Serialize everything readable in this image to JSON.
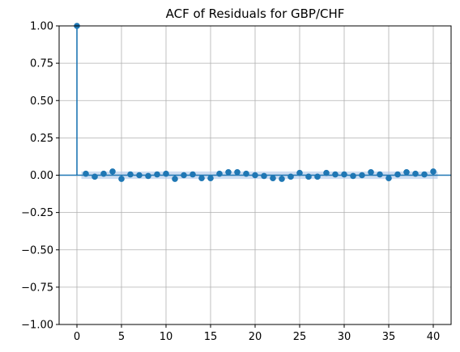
{
  "chart_data": {
    "type": "scatter",
    "title": "ACF of Residuals for GBP/CHF",
    "xlabel": "",
    "ylabel": "",
    "xlim": [
      -2,
      42
    ],
    "ylim": [
      -1.0,
      1.0
    ],
    "x_ticks": [
      0,
      5,
      10,
      15,
      20,
      25,
      30,
      35,
      40
    ],
    "x_tick_labels": [
      "0",
      "5",
      "10",
      "15",
      "20",
      "25",
      "30",
      "35",
      "40"
    ],
    "y_ticks": [
      -1.0,
      -0.75,
      -0.5,
      -0.25,
      0.0,
      0.25,
      0.5,
      0.75,
      1.0
    ],
    "y_tick_labels": [
      "−1.00",
      "−0.75",
      "−0.50",
      "−0.25",
      "0.00",
      "0.25",
      "0.50",
      "0.75",
      "1.00"
    ],
    "grid": true,
    "lags": [
      0,
      1,
      2,
      3,
      4,
      5,
      6,
      7,
      8,
      9,
      10,
      11,
      12,
      13,
      14,
      15,
      16,
      17,
      18,
      19,
      20,
      21,
      22,
      23,
      24,
      25,
      26,
      27,
      28,
      29,
      30,
      31,
      32,
      33,
      34,
      35,
      36,
      37,
      38,
      39,
      40
    ],
    "acf": [
      1.0,
      0.01,
      -0.01,
      0.01,
      0.025,
      -0.025,
      0.005,
      0.0,
      -0.005,
      0.005,
      0.01,
      -0.025,
      0.0,
      0.005,
      -0.02,
      -0.02,
      0.01,
      0.02,
      0.02,
      0.01,
      0.0,
      -0.005,
      -0.02,
      -0.025,
      -0.01,
      0.015,
      -0.01,
      -0.01,
      0.015,
      0.005,
      0.005,
      -0.005,
      0.0,
      0.02,
      0.005,
      -0.02,
      0.005,
      0.02,
      0.01,
      0.005,
      0.025
    ],
    "confidence_band": 0.025,
    "colors": {
      "series": "#1f77b4",
      "band": "#aec7e8",
      "grid": "#b0b0b0",
      "axes": "#000000"
    }
  }
}
